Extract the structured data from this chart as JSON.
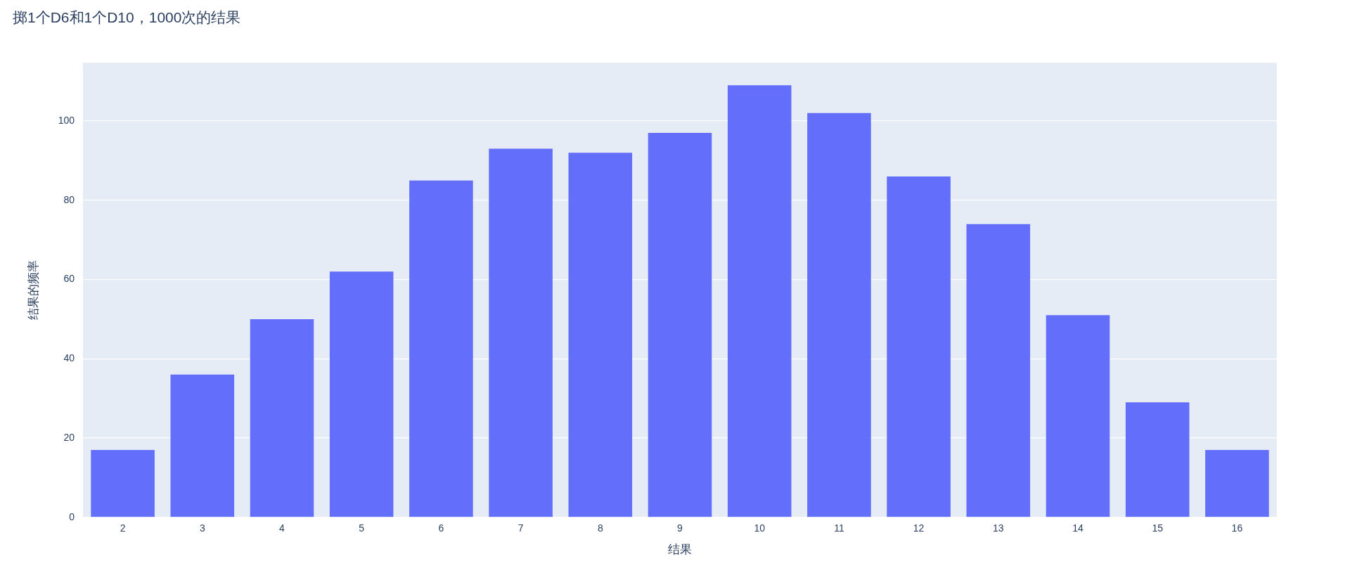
{
  "chart_data": {
    "type": "bar",
    "title": "掷1个D6和1个D10，1000次的结果",
    "xlabel": "结果",
    "ylabel": "结果的频率",
    "categories": [
      "2",
      "3",
      "4",
      "5",
      "6",
      "7",
      "8",
      "9",
      "10",
      "11",
      "12",
      "13",
      "14",
      "15",
      "16"
    ],
    "values": [
      17,
      36,
      50,
      62,
      85,
      93,
      92,
      97,
      109,
      102,
      86,
      74,
      51,
      29,
      17
    ],
    "color": "#636efa",
    "ylim": [
      0,
      114.7
    ],
    "yticks": [
      0,
      20,
      40,
      60,
      80,
      100
    ],
    "grid": "y"
  }
}
